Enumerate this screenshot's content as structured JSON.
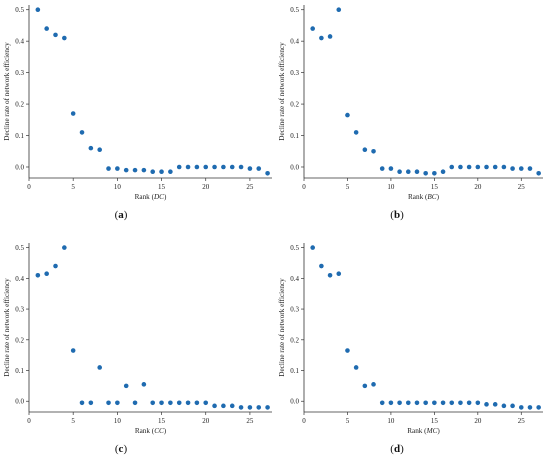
{
  "colors": {
    "marker": "#1f6bb0",
    "axis": "#333333",
    "text": "#222222"
  },
  "chart_data": [
    {
      "type": "scatter",
      "caption_label": "a",
      "xlabel_prefix": "Rank (",
      "xlabel_metric": "DC",
      "xlabel_suffix": ")",
      "ylabel": "Decline rate of network efficiency",
      "xlim": [
        0,
        27.5
      ],
      "ylim": [
        -0.035,
        0.515
      ],
      "xticks": [
        0,
        5,
        10,
        15,
        20,
        25
      ],
      "yticks": [
        0.0,
        0.1,
        0.2,
        0.3,
        0.4,
        0.5
      ],
      "ytick_labels": [
        "0.0",
        "0.1",
        "0.2",
        "0.3",
        "0.4",
        "0.5"
      ],
      "x": [
        1,
        2,
        3,
        4,
        5,
        6,
        7,
        8,
        9,
        10,
        11,
        12,
        13,
        14,
        15,
        16,
        17,
        18,
        19,
        20,
        21,
        22,
        23,
        24,
        25,
        26,
        27
      ],
      "y": [
        0.5,
        0.44,
        0.42,
        0.41,
        0.17,
        0.11,
        0.06,
        0.055,
        -0.005,
        -0.005,
        -0.01,
        -0.01,
        -0.01,
        -0.015,
        -0.015,
        -0.015,
        0.0,
        0.0,
        0.0,
        0.0,
        0.0,
        0.0,
        0.0,
        0.0,
        -0.005,
        -0.005,
        -0.02
      ]
    },
    {
      "type": "scatter",
      "caption_label": "b",
      "xlabel_prefix": "Rank (",
      "xlabel_metric": "BC",
      "xlabel_suffix": ")",
      "ylabel": "Decline rate of network efficiency",
      "xlim": [
        0,
        27.5
      ],
      "ylim": [
        -0.035,
        0.515
      ],
      "xticks": [
        0,
        5,
        10,
        15,
        20,
        25
      ],
      "yticks": [
        0.0,
        0.1,
        0.2,
        0.3,
        0.4,
        0.5
      ],
      "ytick_labels": [
        "0.0",
        "0.1",
        "0.2",
        "0.3",
        "0.4",
        "0.5"
      ],
      "x": [
        1,
        2,
        3,
        4,
        5,
        6,
        7,
        8,
        9,
        10,
        11,
        12,
        13,
        14,
        15,
        16,
        17,
        18,
        19,
        20,
        21,
        22,
        23,
        24,
        25,
        26,
        27
      ],
      "y": [
        0.44,
        0.41,
        0.415,
        0.5,
        0.165,
        0.11,
        0.055,
        0.05,
        -0.005,
        -0.005,
        -0.015,
        -0.015,
        -0.015,
        -0.02,
        -0.02,
        -0.015,
        0.0,
        0.0,
        0.0,
        0.0,
        0.0,
        0.0,
        0.0,
        -0.005,
        -0.005,
        -0.005,
        -0.02
      ]
    },
    {
      "type": "scatter",
      "caption_label": "c",
      "xlabel_prefix": "Rank (",
      "xlabel_metric": "CC",
      "xlabel_suffix": ")",
      "ylabel": "Decline rate of network efficiency",
      "xlim": [
        0,
        27.5
      ],
      "ylim": [
        -0.035,
        0.515
      ],
      "xticks": [
        0,
        5,
        10,
        15,
        20,
        25
      ],
      "yticks": [
        0.0,
        0.1,
        0.2,
        0.3,
        0.4,
        0.5
      ],
      "ytick_labels": [
        "0.0",
        "0.1",
        "0.2",
        "0.3",
        "0.4",
        "0.5"
      ],
      "x": [
        1,
        2,
        3,
        4,
        5,
        6,
        7,
        8,
        9,
        10,
        11,
        12,
        13,
        14,
        15,
        16,
        17,
        18,
        19,
        20,
        21,
        22,
        23,
        24,
        25,
        26,
        27
      ],
      "y": [
        0.41,
        0.415,
        0.44,
        0.5,
        0.165,
        -0.005,
        -0.005,
        0.11,
        -0.005,
        -0.005,
        0.05,
        -0.005,
        0.055,
        -0.005,
        -0.005,
        -0.005,
        -0.005,
        -0.005,
        -0.005,
        -0.005,
        -0.015,
        -0.015,
        -0.015,
        -0.02,
        -0.02,
        -0.02,
        -0.02
      ]
    },
    {
      "type": "scatter",
      "caption_label": "d",
      "xlabel_prefix": "Rank (",
      "xlabel_metric": "MC",
      "xlabel_suffix": ")",
      "ylabel": "Decline rate of network efficiency",
      "xlim": [
        0,
        27.5
      ],
      "ylim": [
        -0.035,
        0.515
      ],
      "xticks": [
        0,
        5,
        10,
        15,
        20,
        25
      ],
      "yticks": [
        0.0,
        0.1,
        0.2,
        0.3,
        0.4,
        0.5
      ],
      "ytick_labels": [
        "0.0",
        "0.1",
        "0.2",
        "0.3",
        "0.4",
        "0.5"
      ],
      "x": [
        1,
        2,
        3,
        4,
        5,
        6,
        7,
        8,
        9,
        10,
        11,
        12,
        13,
        14,
        15,
        16,
        17,
        18,
        19,
        20,
        21,
        22,
        23,
        24,
        25,
        26,
        27
      ],
      "y": [
        0.5,
        0.44,
        0.41,
        0.415,
        0.165,
        0.11,
        0.05,
        0.055,
        -0.005,
        -0.005,
        -0.005,
        -0.005,
        -0.005,
        -0.005,
        -0.005,
        -0.005,
        -0.005,
        -0.005,
        -0.005,
        -0.005,
        -0.01,
        -0.01,
        -0.015,
        -0.015,
        -0.02,
        -0.02,
        -0.02
      ]
    }
  ]
}
